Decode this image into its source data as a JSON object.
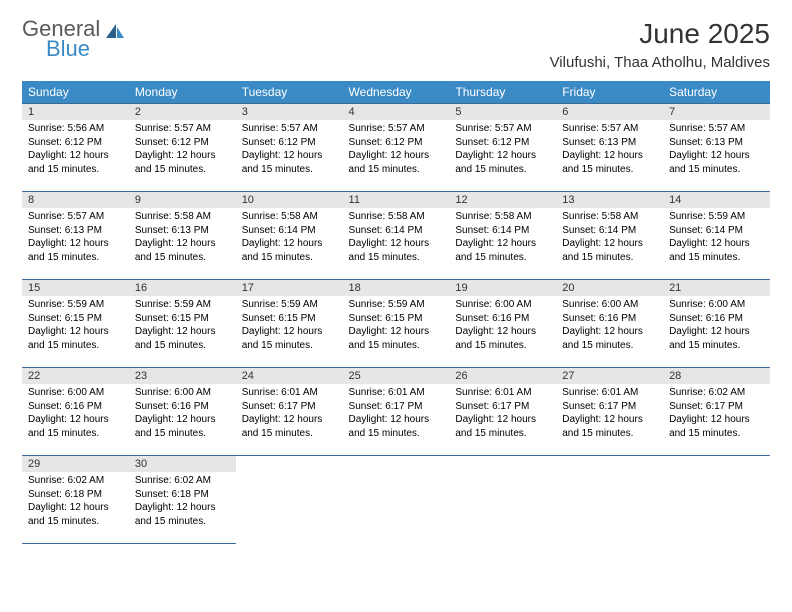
{
  "logo": {
    "general": "General",
    "blue": "Blue"
  },
  "title": "June 2025",
  "location": "Vilufushi, Thaa Atholhu, Maldives",
  "colors": {
    "header_bg": "#3a8ac6",
    "header_text": "#ffffff",
    "day_num_bg": "#e6e6e6",
    "border": "#3a6a95",
    "logo_gray": "#5a5a5a",
    "logo_blue": "#3a8ac6"
  },
  "weekdays": [
    "Sunday",
    "Monday",
    "Tuesday",
    "Wednesday",
    "Thursday",
    "Friday",
    "Saturday"
  ],
  "weeks": [
    [
      {
        "n": "1",
        "sr": "5:56 AM",
        "ss": "6:12 PM",
        "dl": "12 hours and 15 minutes."
      },
      {
        "n": "2",
        "sr": "5:57 AM",
        "ss": "6:12 PM",
        "dl": "12 hours and 15 minutes."
      },
      {
        "n": "3",
        "sr": "5:57 AM",
        "ss": "6:12 PM",
        "dl": "12 hours and 15 minutes."
      },
      {
        "n": "4",
        "sr": "5:57 AM",
        "ss": "6:12 PM",
        "dl": "12 hours and 15 minutes."
      },
      {
        "n": "5",
        "sr": "5:57 AM",
        "ss": "6:12 PM",
        "dl": "12 hours and 15 minutes."
      },
      {
        "n": "6",
        "sr": "5:57 AM",
        "ss": "6:13 PM",
        "dl": "12 hours and 15 minutes."
      },
      {
        "n": "7",
        "sr": "5:57 AM",
        "ss": "6:13 PM",
        "dl": "12 hours and 15 minutes."
      }
    ],
    [
      {
        "n": "8",
        "sr": "5:57 AM",
        "ss": "6:13 PM",
        "dl": "12 hours and 15 minutes."
      },
      {
        "n": "9",
        "sr": "5:58 AM",
        "ss": "6:13 PM",
        "dl": "12 hours and 15 minutes."
      },
      {
        "n": "10",
        "sr": "5:58 AM",
        "ss": "6:14 PM",
        "dl": "12 hours and 15 minutes."
      },
      {
        "n": "11",
        "sr": "5:58 AM",
        "ss": "6:14 PM",
        "dl": "12 hours and 15 minutes."
      },
      {
        "n": "12",
        "sr": "5:58 AM",
        "ss": "6:14 PM",
        "dl": "12 hours and 15 minutes."
      },
      {
        "n": "13",
        "sr": "5:58 AM",
        "ss": "6:14 PM",
        "dl": "12 hours and 15 minutes."
      },
      {
        "n": "14",
        "sr": "5:59 AM",
        "ss": "6:14 PM",
        "dl": "12 hours and 15 minutes."
      }
    ],
    [
      {
        "n": "15",
        "sr": "5:59 AM",
        "ss": "6:15 PM",
        "dl": "12 hours and 15 minutes."
      },
      {
        "n": "16",
        "sr": "5:59 AM",
        "ss": "6:15 PM",
        "dl": "12 hours and 15 minutes."
      },
      {
        "n": "17",
        "sr": "5:59 AM",
        "ss": "6:15 PM",
        "dl": "12 hours and 15 minutes."
      },
      {
        "n": "18",
        "sr": "5:59 AM",
        "ss": "6:15 PM",
        "dl": "12 hours and 15 minutes."
      },
      {
        "n": "19",
        "sr": "6:00 AM",
        "ss": "6:16 PM",
        "dl": "12 hours and 15 minutes."
      },
      {
        "n": "20",
        "sr": "6:00 AM",
        "ss": "6:16 PM",
        "dl": "12 hours and 15 minutes."
      },
      {
        "n": "21",
        "sr": "6:00 AM",
        "ss": "6:16 PM",
        "dl": "12 hours and 15 minutes."
      }
    ],
    [
      {
        "n": "22",
        "sr": "6:00 AM",
        "ss": "6:16 PM",
        "dl": "12 hours and 15 minutes."
      },
      {
        "n": "23",
        "sr": "6:00 AM",
        "ss": "6:16 PM",
        "dl": "12 hours and 15 minutes."
      },
      {
        "n": "24",
        "sr": "6:01 AM",
        "ss": "6:17 PM",
        "dl": "12 hours and 15 minutes."
      },
      {
        "n": "25",
        "sr": "6:01 AM",
        "ss": "6:17 PM",
        "dl": "12 hours and 15 minutes."
      },
      {
        "n": "26",
        "sr": "6:01 AM",
        "ss": "6:17 PM",
        "dl": "12 hours and 15 minutes."
      },
      {
        "n": "27",
        "sr": "6:01 AM",
        "ss": "6:17 PM",
        "dl": "12 hours and 15 minutes."
      },
      {
        "n": "28",
        "sr": "6:02 AM",
        "ss": "6:17 PM",
        "dl": "12 hours and 15 minutes."
      }
    ],
    [
      {
        "n": "29",
        "sr": "6:02 AM",
        "ss": "6:18 PM",
        "dl": "12 hours and 15 minutes."
      },
      {
        "n": "30",
        "sr": "6:02 AM",
        "ss": "6:18 PM",
        "dl": "12 hours and 15 minutes."
      },
      null,
      null,
      null,
      null,
      null
    ]
  ],
  "labels": {
    "sunrise": "Sunrise:",
    "sunset": "Sunset:",
    "daylight": "Daylight:"
  }
}
